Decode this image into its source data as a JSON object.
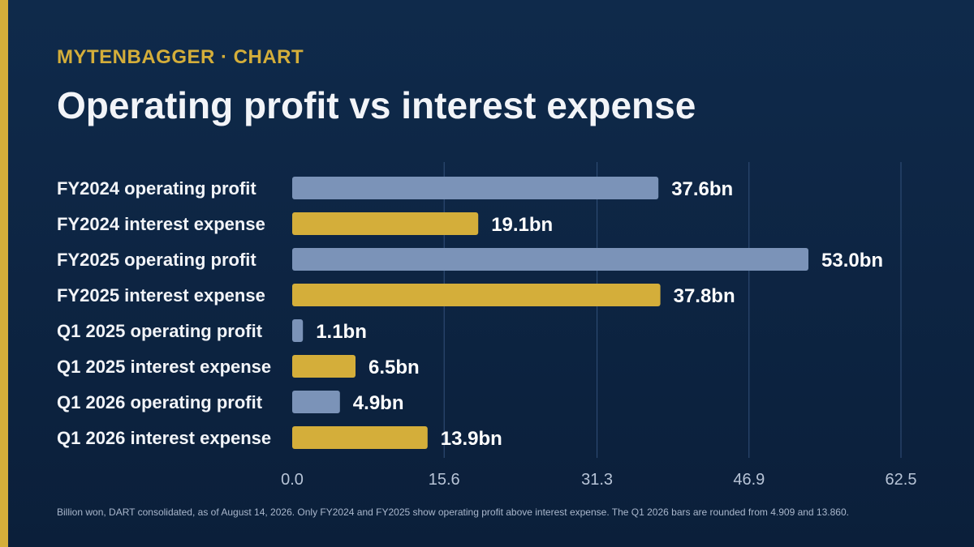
{
  "header": {
    "eyebrow": "MYTENBAGGER · CHART",
    "title": "Operating profit vs interest expense"
  },
  "footnote": "Billion won, DART consolidated, as of August 14, 2026. Only FY2024 and FY2025 show operating profit above interest expense. The Q1 2026 bars are rounded from 4.909 and 13.860.",
  "colors": {
    "background": "#0d2442",
    "accent": "#d4ae3a",
    "operating_profit": "#7b93b8",
    "interest_expense": "#d4ae3a",
    "gridline": "#33507a",
    "tick_text": "#b7c3d6"
  },
  "chart_data": {
    "type": "bar",
    "orientation": "horizontal",
    "title": "Operating profit vs interest expense",
    "xlim": [
      0,
      62.5
    ],
    "xticks": [
      0.0,
      15.6,
      31.3,
      46.9,
      62.5
    ],
    "xtick_labels": [
      "0.0",
      "15.6",
      "31.3",
      "46.9",
      "62.5"
    ],
    "grid": true,
    "categories": [
      "FY2024 operating profit",
      "FY2024 interest expense",
      "FY2025 operating profit",
      "FY2025 interest expense",
      "Q1 2025 operating profit",
      "Q1 2025 interest expense",
      "Q1 2026 operating profit",
      "Q1 2026 interest expense"
    ],
    "values": [
      37.6,
      19.1,
      53.0,
      37.8,
      1.1,
      6.5,
      4.9,
      13.9
    ],
    "value_labels": [
      "37.6bn",
      "19.1bn",
      "53.0bn",
      "37.8bn",
      "1.1bn",
      "6.5bn",
      "4.9bn",
      "13.9bn"
    ],
    "kinds": [
      "operating_profit",
      "interest_expense",
      "operating_profit",
      "interest_expense",
      "operating_profit",
      "interest_expense",
      "operating_profit",
      "interest_expense"
    ]
  }
}
